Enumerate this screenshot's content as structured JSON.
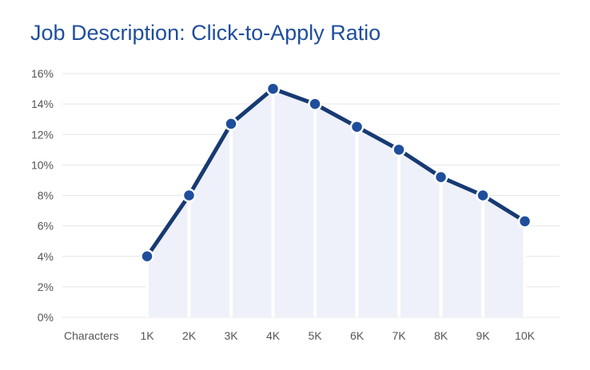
{
  "chart_data": {
    "type": "line",
    "title": "Job Description: Click-to-Apply Ratio",
    "xlabel": "Characters",
    "ylabel": "",
    "categories": [
      "1K",
      "2K",
      "3K",
      "4K",
      "5K",
      "6K",
      "7K",
      "8K",
      "9K",
      "10K"
    ],
    "series": [
      {
        "values": [
          4.0,
          8.0,
          12.7,
          15.0,
          14.0,
          12.5,
          11.0,
          9.2,
          8.0,
          6.3
        ]
      }
    ],
    "y_ticks": [
      "0%",
      "2%",
      "4%",
      "6%",
      "8%",
      "10%",
      "12%",
      "14%",
      "16%"
    ],
    "ylim": [
      0,
      16
    ],
    "grid": true,
    "area_fill": true,
    "colors": {
      "title": "#1f4e9c",
      "line": "#173a72",
      "marker": "#1f4e9c",
      "area": "#eef1f9",
      "grid": "#e6e6e6",
      "tick_text": "#555555"
    }
  }
}
